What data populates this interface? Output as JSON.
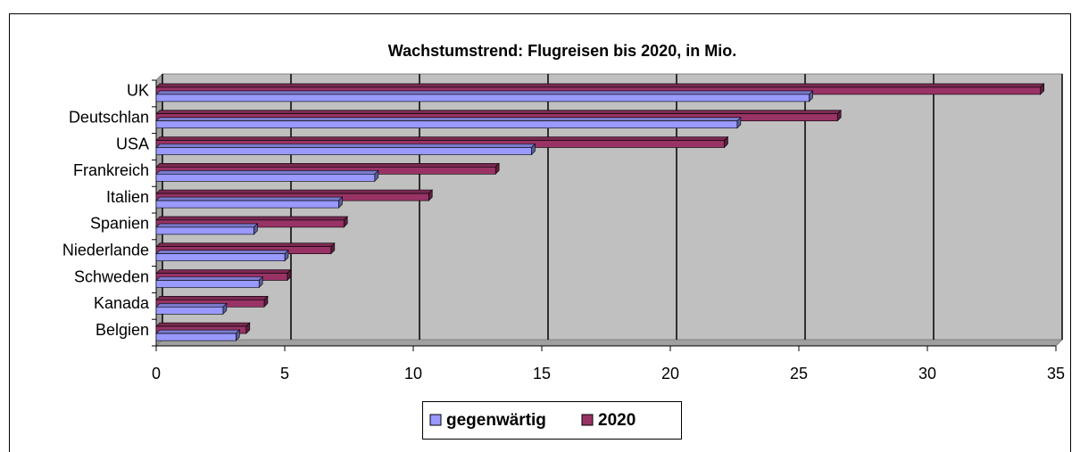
{
  "chart_data": {
    "type": "bar",
    "orientation": "horizontal",
    "title": "Wachstumstrend: Flugreisen bis 2020, in Mio.",
    "categories": [
      "UK",
      "Deutschlan",
      "USA",
      "Frankreich",
      "Italien",
      "Spanien",
      "Niederlande",
      "Schweden",
      "Kanada",
      "Belgien"
    ],
    "series": [
      {
        "name": "gegenwärtig",
        "color": "#9999ff",
        "values": [
          25.4,
          22.6,
          14.6,
          8.5,
          7.1,
          3.8,
          5.0,
          4.0,
          2.6,
          3.1
        ]
      },
      {
        "name": "2020",
        "color": "#993366",
        "values": [
          34.4,
          26.5,
          22.1,
          13.2,
          10.6,
          7.3,
          6.8,
          5.1,
          4.2,
          3.5
        ]
      }
    ],
    "xlim": [
      0,
      35
    ],
    "xticks": [
      0,
      5,
      10,
      15,
      20,
      25,
      30,
      35
    ],
    "grid": true,
    "legend": "bottom"
  }
}
